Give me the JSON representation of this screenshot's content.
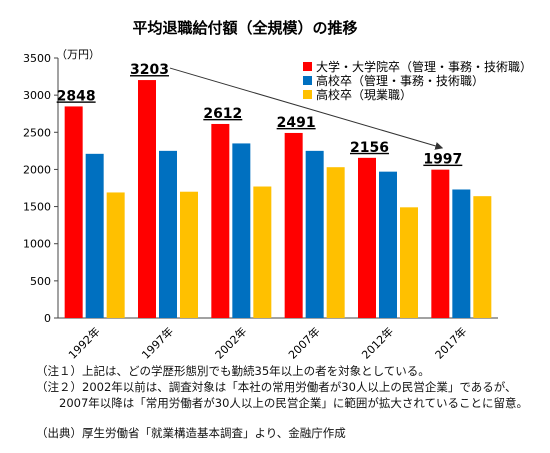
{
  "chart_data": {
    "type": "bar",
    "title": "平均退職給付額（全規模）の推移",
    "ylabel": "（万円）",
    "ylim": [
      0,
      3500
    ],
    "yticks": [
      0,
      500,
      1000,
      1500,
      2000,
      2500,
      3000,
      3500
    ],
    "categories": [
      "1992年",
      "1997年",
      "2002年",
      "2007年",
      "2012年",
      "2017年"
    ],
    "series": [
      {
        "name": "大学・大学院卒（管理・事務・技術職）",
        "color": "#ff0000",
        "values": [
          2848,
          3203,
          2612,
          2491,
          2156,
          1997
        ]
      },
      {
        "name": "高校卒（管理・事務・技術職）",
        "color": "#0070c0",
        "values": [
          2210,
          2250,
          2350,
          2250,
          1970,
          1730
        ]
      },
      {
        "name": "高校卒（現業職）",
        "color": "#ffc000",
        "values": [
          1690,
          1700,
          1770,
          2030,
          1490,
          1640
        ]
      }
    ],
    "data_labels": [
      "2848",
      "3203",
      "2612",
      "2491",
      "2156",
      "1997"
    ],
    "annotation": "trend arrow from 1997 peak to 2017",
    "legend_position": "top-right",
    "grid": false
  },
  "notes": [
    "（注１）上記は、どの学歴形態別でも勤続35年以上の者を対象としている。",
    "（注２）2002年以前は、調査対象は「本社の常用労働者が30人以上の民営企業」であるが、",
    "　　2007年以降は「常用労働者が30人以上の民営企業」に範囲が拡大されていることに留意。"
  ],
  "source": "（出典）厚生労働省「就業構造基本調査」より、金融庁作成"
}
